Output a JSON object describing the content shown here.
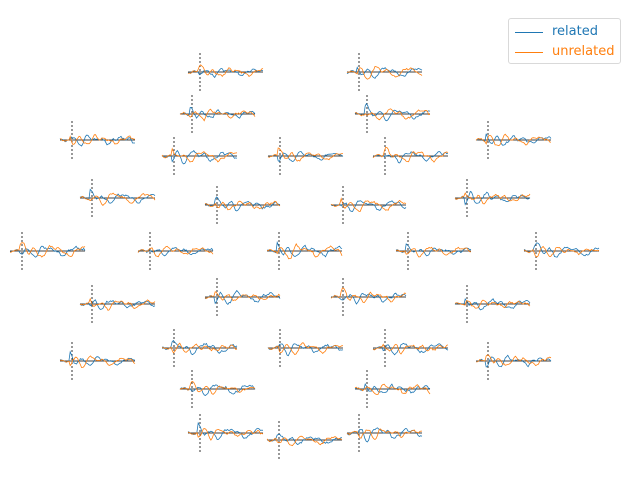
{
  "chart_data": {
    "type": "line",
    "title": "",
    "xlabel": "",
    "ylabel": "",
    "grid": false,
    "legend_position": "top-right",
    "series": [
      {
        "name": "related",
        "color": "#1f77b4"
      },
      {
        "name": "unrelated",
        "color": "#ff7f0e"
      }
    ],
    "channels": [
      {
        "id": "ch01",
        "seed": 1
      },
      {
        "id": "ch02",
        "seed": 2
      },
      {
        "id": "ch03",
        "seed": 3
      },
      {
        "id": "ch04",
        "seed": 4
      },
      {
        "id": "ch05",
        "seed": 5
      },
      {
        "id": "ch06",
        "seed": 6
      },
      {
        "id": "ch07",
        "seed": 7
      },
      {
        "id": "ch08",
        "seed": 8
      },
      {
        "id": "ch09",
        "seed": 9
      },
      {
        "id": "ch10",
        "seed": 10
      },
      {
        "id": "ch11",
        "seed": 11
      },
      {
        "id": "ch12",
        "seed": 12
      },
      {
        "id": "ch13",
        "seed": 13
      },
      {
        "id": "ch14",
        "seed": 14
      },
      {
        "id": "ch15",
        "seed": 15
      },
      {
        "id": "ch16",
        "seed": 16
      },
      {
        "id": "ch17",
        "seed": 17
      },
      {
        "id": "ch18",
        "seed": 18
      },
      {
        "id": "ch19",
        "seed": 19
      },
      {
        "id": "ch20",
        "seed": 20
      },
      {
        "id": "ch21",
        "seed": 21
      },
      {
        "id": "ch22",
        "seed": 22
      },
      {
        "id": "ch23",
        "seed": 23
      },
      {
        "id": "ch24",
        "seed": 24
      },
      {
        "id": "ch25",
        "seed": 25
      },
      {
        "id": "ch26",
        "seed": 26
      },
      {
        "id": "ch27",
        "seed": 27
      },
      {
        "id": "ch28",
        "seed": 28
      },
      {
        "id": "ch29",
        "seed": 29
      },
      {
        "id": "ch30",
        "seed": 30
      },
      {
        "id": "ch31",
        "seed": 31
      },
      {
        "id": "ch32",
        "seed": 32
      }
    ]
  }
}
